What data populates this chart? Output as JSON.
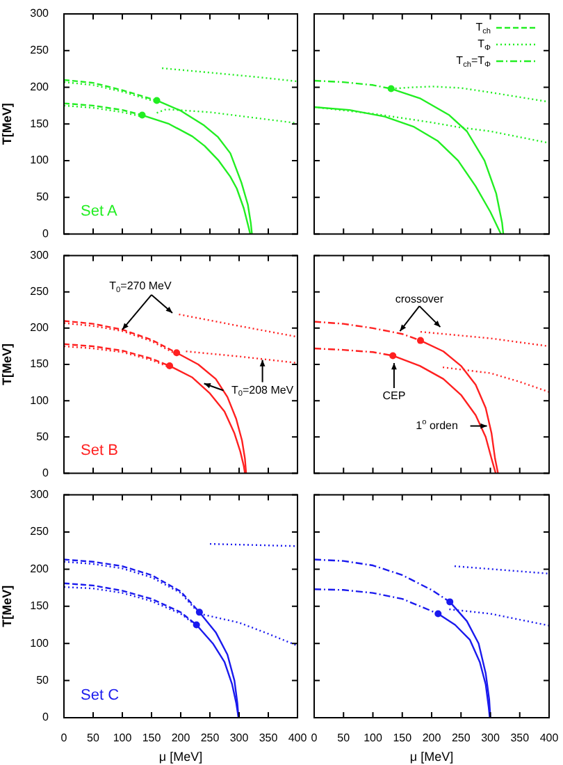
{
  "chart_data": [
    {
      "type": "line",
      "title": "Set A",
      "ylabel": "T[MeV]",
      "xlim": [
        0,
        400
      ],
      "ylim": [
        0,
        300
      ],
      "xticks": [
        0,
        50,
        100,
        150,
        200,
        250,
        300,
        350,
        400
      ],
      "yticks": [
        0,
        50,
        100,
        150,
        200,
        250,
        300
      ],
      "tick_labels": "y",
      "series": [
        {
          "color": "#22ee22",
          "line_style": "dashed",
          "x": [
            0,
            50,
            100,
            159
          ],
          "values": [
            210,
            206,
            196,
            182
          ]
        },
        {
          "color": "#22ee22",
          "line_style": "dotted",
          "x": [
            0,
            50,
            100,
            159
          ],
          "values": [
            207,
            203,
            194,
            180
          ]
        },
        {
          "color": "#22ee22",
          "line_style": "dashed",
          "x": [
            0,
            50,
            100,
            134
          ],
          "values": [
            178,
            175,
            169,
            162
          ]
        },
        {
          "color": "#22ee22",
          "line_style": "dotted",
          "x": [
            0,
            50,
            100,
            134
          ],
          "values": [
            175,
            172,
            166,
            160
          ]
        },
        {
          "color": "#22ee22",
          "line_style": "solid",
          "x": [
            159,
            200,
            240,
            264,
            285,
            304,
            315,
            320,
            322
          ],
          "values": [
            182,
            168,
            148,
            132,
            110,
            70,
            40,
            15,
            0
          ]
        },
        {
          "color": "#22ee22",
          "line_style": "solid",
          "x": [
            134,
            180,
            220,
            241,
            265,
            285,
            296,
            308,
            316,
            319
          ],
          "values": [
            162,
            150,
            133,
            120,
            100,
            78,
            62,
            35,
            10,
            0
          ]
        },
        {
          "color": "#22ee22",
          "line_style": "dotted",
          "x": [
            168,
            250,
            330,
            400
          ],
          "values": [
            226,
            220,
            214,
            208
          ]
        },
        {
          "color": "#22ee22",
          "line_style": "dotted",
          "x": [
            159,
            175,
            250,
            330,
            400
          ],
          "values": [
            165,
            170,
            166,
            158,
            151
          ]
        },
        {
          "type": "scatter",
          "marker": "circle",
          "color": "#22ee22",
          "x": [
            159,
            134
          ],
          "values": [
            182,
            162
          ]
        }
      ]
    },
    {
      "type": "line",
      "xlim": [
        0,
        400
      ],
      "ylim": [
        0,
        300
      ],
      "xticks": [
        0,
        50,
        100,
        150,
        200,
        250,
        300,
        350,
        400
      ],
      "yticks": [
        0,
        50,
        100,
        150,
        200,
        250,
        300
      ],
      "tick_labels": false,
      "legend": "top right",
      "series": [
        {
          "name": "T$_{ch}$",
          "color": "#22ee22",
          "line_style": "dashed"
        },
        {
          "name": "T$_{Φ}$",
          "color": "#22ee22",
          "line_style": "dotted",
          "x": [
            131,
            170,
            202,
            250,
            300,
            400
          ],
          "values": [
            198,
            200,
            201,
            199,
            193,
            180
          ]
        },
        {
          "name": "T$_{ch}$=T$_{Φ}$",
          "color": "#22ee22",
          "line_style": "dashdot",
          "x": [
            0,
            50,
            100,
            131
          ],
          "values": [
            209,
            207,
            203,
            198
          ]
        },
        {
          "color": "#22ee22",
          "line_style": "solid",
          "x": [
            131,
            180,
            230,
            260,
            290,
            310,
            320,
            322
          ],
          "values": [
            198,
            185,
            162,
            140,
            100,
            55,
            15,
            0
          ]
        },
        {
          "color": "#22ee22",
          "line_style": "solid",
          "x": [
            0,
            60,
            120,
            170,
            210,
            245,
            275,
            300,
            318
          ],
          "values": [
            173,
            169,
            160,
            146,
            127,
            100,
            65,
            30,
            0
          ]
        },
        {
          "color": "#22ee22",
          "line_style": "dotted",
          "x": [
            0,
            100,
            200,
            250,
            300,
            400
          ],
          "values": [
            173,
            164,
            152,
            145,
            140,
            124
          ]
        },
        {
          "type": "scatter",
          "marker": "circle",
          "color": "#22ee22",
          "x": [
            131
          ],
          "values": [
            198
          ]
        }
      ]
    },
    {
      "type": "line",
      "title": "Set B",
      "ylabel": "T[MeV]",
      "xlim": [
        0,
        400
      ],
      "ylim": [
        0,
        300
      ],
      "xticks": [
        0,
        50,
        100,
        150,
        200,
        250,
        300,
        350,
        400
      ],
      "yticks": [
        0,
        50,
        100,
        150,
        200,
        250,
        300
      ],
      "tick_labels": "y",
      "annotations": [
        {
          "text": "T$_{0}$=270 MeV",
          "x": 100,
          "y": 198
        },
        "T$_{0}$=208 MeV"
      ],
      "series": [
        {
          "color": "#ff2020",
          "line_style": "dashed",
          "x": [
            0,
            50,
            100,
            150,
            193
          ],
          "values": [
            210,
            206,
            198,
            184,
            166
          ]
        },
        {
          "color": "#ff2020",
          "line_style": "dotted",
          "x": [
            0,
            50,
            100,
            150,
            193
          ],
          "values": [
            207,
            203,
            196,
            182,
            164
          ]
        },
        {
          "color": "#ff2020",
          "line_style": "dashed",
          "x": [
            0,
            50,
            100,
            150,
            181
          ],
          "values": [
            178,
            175,
            169,
            158,
            148
          ]
        },
        {
          "color": "#ff2020",
          "line_style": "dotted",
          "x": [
            0,
            50,
            100,
            150,
            181
          ],
          "values": [
            175,
            172,
            167,
            156,
            146
          ]
        },
        {
          "color": "#ff2020",
          "line_style": "solid",
          "x": [
            193,
            230,
            260,
            280,
            295,
            305,
            310,
            312
          ],
          "values": [
            166,
            150,
            130,
            105,
            75,
            45,
            20,
            0
          ]
        },
        {
          "color": "#ff2020",
          "line_style": "solid",
          "x": [
            181,
            220,
            250,
            275,
            292,
            302,
            308,
            310
          ],
          "values": [
            148,
            132,
            110,
            85,
            55,
            30,
            10,
            0
          ]
        },
        {
          "color": "#ff2020",
          "line_style": "dotted",
          "x": [
            197,
            300,
            400
          ],
          "values": [
            219,
            203,
            188
          ]
        },
        {
          "color": "#ff2020",
          "line_style": "dotted",
          "x": [
            209,
            300,
            400
          ],
          "values": [
            168,
            161,
            152
          ]
        },
        {
          "type": "scatter",
          "marker": "circle",
          "color": "#ff2020",
          "x": [
            193,
            181
          ],
          "values": [
            166,
            148
          ]
        }
      ]
    },
    {
      "type": "line",
      "xlim": [
        0,
        400
      ],
      "ylim": [
        0,
        300
      ],
      "xticks": [
        0,
        50,
        100,
        150,
        200,
        250,
        300,
        350,
        400
      ],
      "yticks": [
        0,
        50,
        100,
        150,
        200,
        250,
        300
      ],
      "tick_labels": false,
      "annotations": [
        "crossover",
        "CEP",
        "1$^{o}$ orden"
      ],
      "series": [
        {
          "color": "#ff2020",
          "line_style": "dashdot",
          "x": [
            0,
            50,
            100,
            150,
            181
          ],
          "values": [
            209,
            206,
            200,
            192,
            183
          ]
        },
        {
          "color": "#ff2020",
          "line_style": "dashdot",
          "x": [
            0,
            50,
            100,
            134
          ],
          "values": [
            172,
            170,
            167,
            162
          ]
        },
        {
          "color": "#ff2020",
          "line_style": "solid",
          "x": [
            181,
            220,
            250,
            275,
            292,
            302,
            308,
            313
          ],
          "values": [
            183,
            168,
            148,
            122,
            90,
            55,
            20,
            0
          ]
        },
        {
          "color": "#ff2020",
          "line_style": "solid",
          "x": [
            134,
            180,
            220,
            250,
            275,
            292,
            302,
            309
          ],
          "values": [
            162,
            148,
            130,
            108,
            80,
            50,
            20,
            0
          ]
        },
        {
          "color": "#ff2020",
          "line_style": "dotted",
          "x": [
            181,
            300,
            400
          ],
          "values": [
            195,
            186,
            175
          ]
        },
        {
          "color": "#ff2020",
          "line_style": "dotted",
          "x": [
            219,
            300,
            350,
            400
          ],
          "values": [
            146,
            138,
            126,
            112
          ]
        },
        {
          "type": "scatter",
          "marker": "circle",
          "color": "#ff2020",
          "x": [
            181,
            134
          ],
          "values": [
            183,
            162
          ]
        }
      ]
    },
    {
      "type": "line",
      "title": "Set C",
      "xlabel": "μ [MeV]",
      "ylabel": "T[MeV]",
      "xlim": [
        0,
        400
      ],
      "ylim": [
        0,
        300
      ],
      "xticks": [
        0,
        50,
        100,
        150,
        200,
        250,
        300,
        350,
        400
      ],
      "yticks": [
        0,
        50,
        100,
        150,
        200,
        250,
        300
      ],
      "series": [
        {
          "color": "#1a1aee",
          "line_style": "dashed",
          "x": [
            0,
            50,
            100,
            150,
            200,
            232
          ],
          "values": [
            213,
            210,
            204,
            192,
            170,
            142
          ]
        },
        {
          "color": "#1a1aee",
          "line_style": "dotted",
          "x": [
            0,
            50,
            100,
            150,
            200,
            232
          ],
          "values": [
            210,
            207,
            201,
            189,
            168,
            140
          ]
        },
        {
          "color": "#1a1aee",
          "line_style": "dashed",
          "x": [
            0,
            50,
            100,
            150,
            200,
            227
          ],
          "values": [
            181,
            178,
            171,
            160,
            142,
            125
          ]
        },
        {
          "color": "#1a1aee",
          "line_style": "dotted",
          "x": [
            0,
            50,
            100,
            150,
            200,
            227
          ],
          "values": [
            176,
            174,
            168,
            157,
            140,
            124
          ]
        },
        {
          "color": "#1a1aee",
          "line_style": "solid",
          "x": [
            232,
            260,
            280,
            292,
            297,
            299
          ],
          "values": [
            142,
            115,
            85,
            50,
            20,
            0
          ]
        },
        {
          "color": "#1a1aee",
          "line_style": "solid",
          "x": [
            227,
            255,
            275,
            288,
            295,
            299
          ],
          "values": [
            125,
            100,
            75,
            45,
            20,
            0
          ]
        },
        {
          "color": "#1a1aee",
          "line_style": "dotted",
          "x": [
            250,
            400
          ],
          "values": [
            234,
            231
          ]
        },
        {
          "color": "#1a1aee",
          "line_style": "dotted",
          "x": [
            232,
            300,
            350,
            400
          ],
          "values": [
            140,
            128,
            113,
            97
          ]
        },
        {
          "type": "scatter",
          "marker": "circle",
          "color": "#1a1aee",
          "x": [
            232,
            227
          ],
          "values": [
            142,
            125
          ]
        }
      ]
    },
    {
      "type": "line",
      "xlabel": "μ [MeV]",
      "xlim": [
        0,
        400
      ],
      "ylim": [
        0,
        300
      ],
      "xticks": [
        0,
        50,
        100,
        150,
        200,
        250,
        300,
        350,
        400
      ],
      "yticks": [
        0,
        50,
        100,
        150,
        200,
        250,
        300
      ],
      "tick_labels": "x",
      "series": [
        {
          "color": "#1a1aee",
          "line_style": "dashdot",
          "x": [
            0,
            50,
            100,
            150,
            200,
            231
          ],
          "values": [
            213,
            211,
            205,
            192,
            172,
            156
          ]
        },
        {
          "color": "#1a1aee",
          "line_style": "dashdot",
          "x": [
            0,
            50,
            100,
            150,
            211
          ],
          "values": [
            173,
            172,
            168,
            160,
            140
          ]
        },
        {
          "color": "#1a1aee",
          "line_style": "solid",
          "x": [
            231,
            260,
            280,
            292,
            298,
            300
          ],
          "values": [
            156,
            130,
            100,
            60,
            25,
            0
          ]
        },
        {
          "color": "#1a1aee",
          "line_style": "solid",
          "x": [
            211,
            240,
            265,
            282,
            292,
            297,
            299
          ],
          "values": [
            140,
            125,
            105,
            75,
            45,
            15,
            0
          ]
        },
        {
          "color": "#1a1aee",
          "line_style": "dotted",
          "x": [
            239,
            400
          ],
          "values": [
            204,
            194
          ]
        },
        {
          "color": "#1a1aee",
          "line_style": "dotted",
          "x": [
            230,
            300,
            400
          ],
          "values": [
            146,
            140,
            124
          ]
        },
        {
          "type": "scatter",
          "marker": "circle",
          "color": "#1a1aee",
          "x": [
            231,
            211
          ],
          "values": [
            156,
            140
          ]
        }
      ]
    }
  ]
}
